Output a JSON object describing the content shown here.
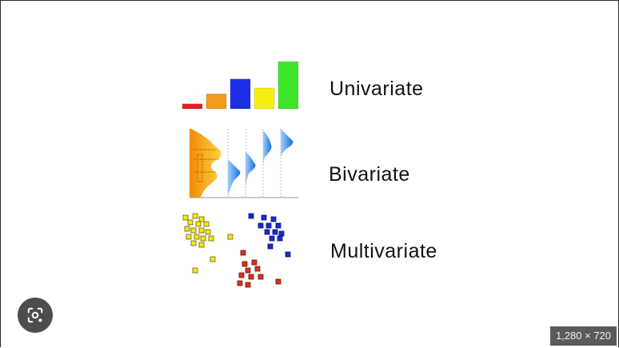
{
  "figure": {
    "rows": [
      {
        "label": "Univariate",
        "icon": "bar-chart-icon"
      },
      {
        "label": "Bivariate",
        "icon": "distribution-chart-icon"
      },
      {
        "label": "Multivariate",
        "icon": "scatter-clusters-icon"
      }
    ],
    "bar_colors": [
      "#e32222",
      "#f59a1a",
      "#1c2ee8",
      "#f7ef12",
      "#3ee62a"
    ],
    "bar_levels": [
      0.1,
      0.3,
      0.6,
      0.42,
      0.95
    ]
  },
  "viewer": {
    "lens_icon": "lens-search-icon",
    "dimensions": "1,280 × 720"
  }
}
